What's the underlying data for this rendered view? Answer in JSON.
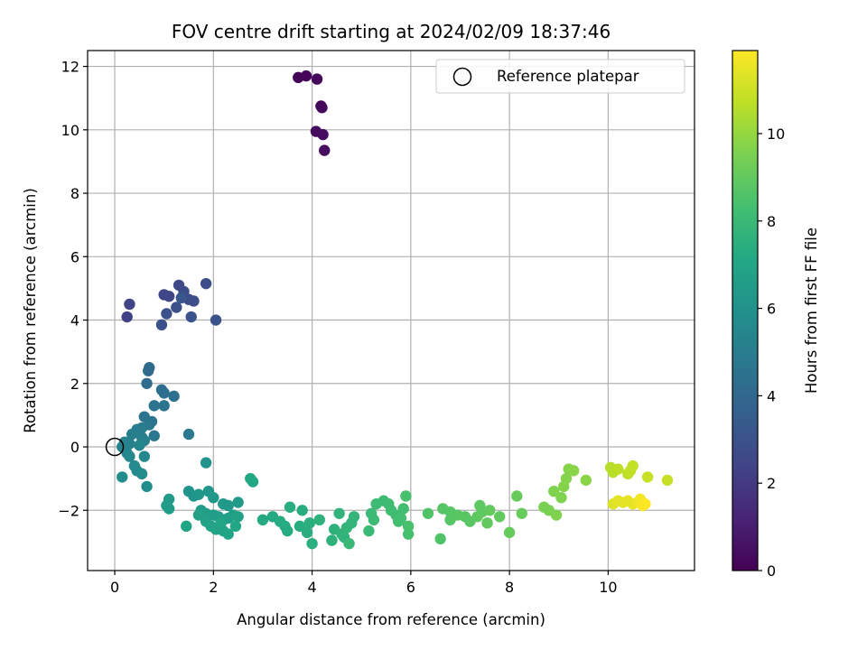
{
  "chart_data": {
    "type": "scatter",
    "title": "FOV centre drift starting at 2024/02/09 18:37:46",
    "xlabel": "Angular distance from reference (arcmin)",
    "ylabel": "Rotation from reference (arcmin)",
    "colorbar_label": "Hours from first FF file",
    "xlim": [
      -0.55,
      11.75
    ],
    "ylim": [
      -3.9,
      12.5
    ],
    "x_ticks": [
      0,
      2,
      4,
      6,
      8,
      10
    ],
    "y_ticks": [
      -2,
      0,
      2,
      4,
      6,
      8,
      10,
      12
    ],
    "colorbar_ticks": [
      0,
      2,
      4,
      6,
      8,
      10
    ],
    "colorbar_range": [
      0,
      11.9
    ],
    "colormap": "viridis",
    "grid": true,
    "legend_position": "top-right",
    "reference": {
      "label": "Reference platepar",
      "x": 0,
      "y": 0
    },
    "points": [
      [
        3.72,
        11.65,
        0.1
      ],
      [
        3.88,
        11.7,
        0.15
      ],
      [
        4.1,
        11.6,
        0.2
      ],
      [
        4.18,
        10.75,
        0.25
      ],
      [
        4.2,
        10.7,
        0.3
      ],
      [
        4.08,
        9.95,
        0.35
      ],
      [
        4.22,
        9.85,
        0.4
      ],
      [
        4.25,
        9.35,
        0.45
      ],
      [
        0.25,
        4.1,
        2.3
      ],
      [
        0.3,
        4.5,
        2.4
      ],
      [
        1.0,
        4.8,
        2.5
      ],
      [
        1.1,
        4.75,
        2.5
      ],
      [
        1.3,
        5.1,
        2.6
      ],
      [
        1.4,
        4.9,
        2.7
      ],
      [
        1.5,
        4.65,
        2.7
      ],
      [
        1.6,
        4.6,
        2.8
      ],
      [
        1.85,
        5.15,
        2.8
      ],
      [
        1.25,
        4.4,
        2.9
      ],
      [
        1.05,
        4.2,
        3.0
      ],
      [
        0.95,
        3.85,
        3.0
      ],
      [
        1.55,
        4.1,
        3.1
      ],
      [
        2.05,
        4.0,
        3.1
      ],
      [
        1.35,
        4.7,
        3.2
      ],
      [
        0.7,
        2.5,
        4.1
      ],
      [
        0.68,
        2.4,
        4.1
      ],
      [
        0.65,
        2.0,
        4.2
      ],
      [
        0.95,
        1.8,
        4.3
      ],
      [
        1.0,
        1.7,
        4.3
      ],
      [
        1.2,
        1.6,
        4.4
      ],
      [
        0.8,
        1.3,
        4.5
      ],
      [
        1.0,
        1.3,
        4.5
      ],
      [
        0.6,
        0.95,
        4.6
      ],
      [
        0.75,
        0.8,
        4.6
      ],
      [
        0.7,
        0.7,
        4.7
      ],
      [
        0.8,
        0.35,
        4.7
      ],
      [
        1.5,
        0.4,
        4.8
      ],
      [
        0.55,
        0.6,
        5.0
      ],
      [
        0.45,
        0.55,
        5.0
      ],
      [
        0.35,
        0.4,
        5.1
      ],
      [
        0.55,
        0.3,
        5.1
      ],
      [
        0.6,
        0.2,
        5.2
      ],
      [
        0.3,
        0.1,
        5.2
      ],
      [
        0.2,
        0.15,
        5.3
      ],
      [
        0.15,
        0.0,
        5.3
      ],
      [
        0.5,
        0.05,
        5.4
      ],
      [
        0.25,
        -0.2,
        5.4
      ],
      [
        0.3,
        -0.3,
        5.5
      ],
      [
        0.6,
        -0.3,
        5.5
      ],
      [
        0.4,
        -0.6,
        5.6
      ],
      [
        0.45,
        -0.75,
        5.6
      ],
      [
        0.55,
        -0.85,
        5.7
      ],
      [
        0.15,
        -0.95,
        5.7
      ],
      [
        0.65,
        -1.25,
        5.8
      ],
      [
        1.85,
        -0.5,
        6.0
      ],
      [
        1.5,
        -1.4,
        6.1
      ],
      [
        1.6,
        -1.55,
        6.1
      ],
      [
        1.7,
        -1.5,
        6.2
      ],
      [
        1.9,
        -1.4,
        6.2
      ],
      [
        2.0,
        -1.6,
        6.3
      ],
      [
        2.2,
        -1.8,
        6.3
      ],
      [
        2.3,
        -1.85,
        6.3
      ],
      [
        2.5,
        -1.75,
        6.4
      ],
      [
        1.1,
        -1.65,
        6.4
      ],
      [
        1.05,
        -1.85,
        6.5
      ],
      [
        1.1,
        -1.95,
        6.5
      ],
      [
        1.75,
        -2.0,
        6.5
      ],
      [
        1.85,
        -2.1,
        6.6
      ],
      [
        2.0,
        -2.15,
        6.6
      ],
      [
        2.1,
        -2.2,
        6.6
      ],
      [
        2.2,
        -2.3,
        6.7
      ],
      [
        2.3,
        -2.25,
        6.7
      ],
      [
        2.4,
        -2.15,
        6.7
      ],
      [
        2.5,
        -2.2,
        6.8
      ],
      [
        1.7,
        -2.15,
        6.8
      ],
      [
        1.85,
        -2.35,
        6.8
      ],
      [
        1.95,
        -2.5,
        6.9
      ],
      [
        2.05,
        -2.6,
        6.9
      ],
      [
        2.2,
        -2.65,
        6.9
      ],
      [
        2.3,
        -2.75,
        7.0
      ],
      [
        2.15,
        -2.4,
        7.0
      ],
      [
        1.45,
        -2.5,
        7.0
      ],
      [
        2.45,
        -2.5,
        7.1
      ],
      [
        2.75,
        -1.0,
        7.1
      ],
      [
        2.8,
        -1.1,
        7.1
      ],
      [
        3.0,
        -2.3,
        7.2
      ],
      [
        3.2,
        -2.2,
        7.2
      ],
      [
        3.35,
        -2.35,
        7.3
      ],
      [
        3.45,
        -2.5,
        7.3
      ],
      [
        3.5,
        -2.65,
        7.3
      ],
      [
        3.55,
        -1.9,
        7.4
      ],
      [
        3.75,
        -2.5,
        7.4
      ],
      [
        3.8,
        -2.0,
        7.4
      ],
      [
        3.9,
        -2.7,
        7.5
      ],
      [
        3.95,
        -2.4,
        7.5
      ],
      [
        4.0,
        -3.05,
        7.5
      ],
      [
        4.15,
        -2.3,
        7.6
      ],
      [
        4.4,
        -2.95,
        7.6
      ],
      [
        4.45,
        -2.6,
        7.6
      ],
      [
        4.55,
        -2.1,
        7.7
      ],
      [
        4.6,
        -2.75,
        7.7
      ],
      [
        4.65,
        -2.85,
        7.7
      ],
      [
        4.7,
        -2.55,
        7.8
      ],
      [
        4.8,
        -2.4,
        7.8
      ],
      [
        4.85,
        -2.2,
        7.8
      ],
      [
        4.75,
        -3.05,
        7.9
      ],
      [
        5.15,
        -2.65,
        8.0
      ],
      [
        5.2,
        -2.1,
        8.0
      ],
      [
        5.25,
        -2.3,
        8.1
      ],
      [
        5.3,
        -1.8,
        8.1
      ],
      [
        5.45,
        -1.7,
        8.1
      ],
      [
        5.55,
        -1.8,
        8.2
      ],
      [
        5.6,
        -2.0,
        8.2
      ],
      [
        5.7,
        -2.15,
        8.2
      ],
      [
        5.75,
        -2.35,
        8.3
      ],
      [
        5.8,
        -2.25,
        8.3
      ],
      [
        5.85,
        -1.95,
        8.3
      ],
      [
        5.9,
        -1.55,
        8.4
      ],
      [
        5.95,
        -2.5,
        8.4
      ],
      [
        5.95,
        -2.75,
        8.4
      ],
      [
        6.35,
        -2.1,
        8.6
      ],
      [
        6.6,
        -2.9,
        8.6
      ],
      [
        6.65,
        -1.95,
        8.7
      ],
      [
        6.8,
        -2.05,
        8.7
      ],
      [
        6.8,
        -2.3,
        8.7
      ],
      [
        6.95,
        -2.15,
        8.8
      ],
      [
        7.1,
        -2.2,
        8.8
      ],
      [
        7.2,
        -2.35,
        8.8
      ],
      [
        7.35,
        -2.2,
        8.9
      ],
      [
        7.4,
        -1.85,
        8.9
      ],
      [
        7.45,
        -2.05,
        8.9
      ],
      [
        7.55,
        -2.4,
        9.0
      ],
      [
        7.6,
        -2.0,
        9.0
      ],
      [
        7.8,
        -2.2,
        9.0
      ],
      [
        8.0,
        -2.7,
        9.1
      ],
      [
        8.15,
        -1.55,
        9.1
      ],
      [
        8.25,
        -2.1,
        9.1
      ],
      [
        8.7,
        -1.9,
        9.5
      ],
      [
        8.8,
        -2.0,
        9.5
      ],
      [
        8.9,
        -1.4,
        9.6
      ],
      [
        8.95,
        -2.15,
        9.6
      ],
      [
        9.05,
        -1.6,
        9.6
      ],
      [
        9.1,
        -1.25,
        9.7
      ],
      [
        9.15,
        -1.0,
        9.7
      ],
      [
        9.2,
        -0.7,
        9.7
      ],
      [
        9.3,
        -0.75,
        9.8
      ],
      [
        9.55,
        -1.05,
        9.8
      ],
      [
        10.05,
        -0.65,
        10.6
      ],
      [
        10.1,
        -0.8,
        10.6
      ],
      [
        10.2,
        -0.7,
        10.7
      ],
      [
        10.4,
        -0.85,
        10.7
      ],
      [
        10.45,
        -0.75,
        10.8
      ],
      [
        10.5,
        -0.6,
        10.8
      ],
      [
        10.8,
        -0.95,
        10.9
      ],
      [
        11.2,
        -1.05,
        10.9
      ],
      [
        10.1,
        -1.8,
        11.3
      ],
      [
        10.2,
        -1.7,
        11.4
      ],
      [
        10.3,
        -1.75,
        11.4
      ],
      [
        10.4,
        -1.7,
        11.5
      ],
      [
        10.5,
        -1.8,
        11.5
      ],
      [
        10.6,
        -1.75,
        11.6
      ],
      [
        10.65,
        -1.65,
        11.7
      ],
      [
        10.7,
        -1.85,
        11.8
      ],
      [
        10.75,
        -1.8,
        11.9
      ]
    ]
  }
}
